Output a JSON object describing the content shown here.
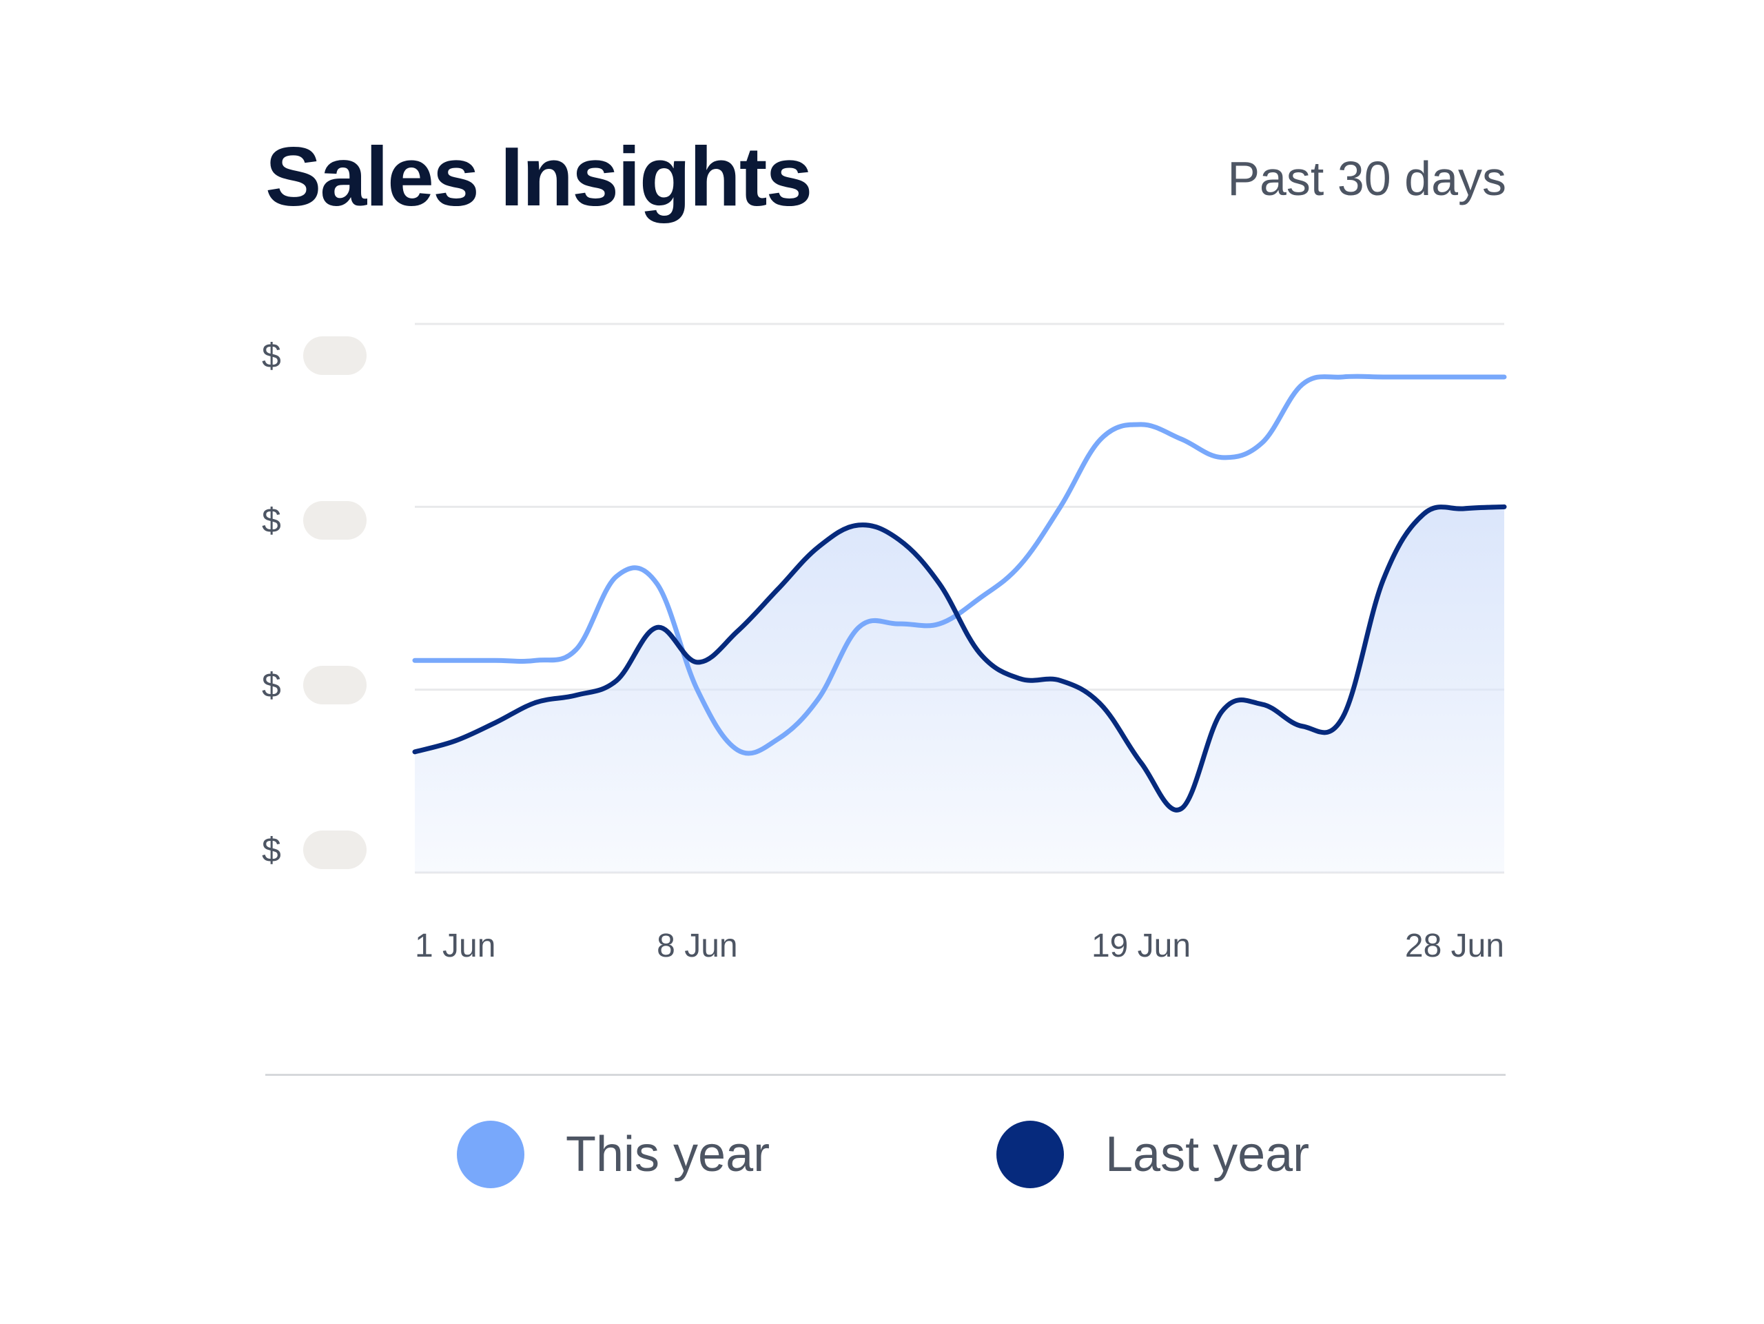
{
  "header": {
    "title": "Sales Insights",
    "period": "Past 30 days"
  },
  "y_axis": {
    "labels": [
      "$",
      "$",
      "$",
      "$"
    ]
  },
  "colors": {
    "this_year": "#78a8fb",
    "last_year": "#062a7d",
    "area_fill": "#dbe6fb",
    "grid": "#e8e9eb"
  },
  "chart_data": {
    "type": "line",
    "x_ticks": [
      "1 Jun",
      "8 Jun",
      "19 Jun",
      "28 Jun"
    ],
    "x_tick_positions": [
      1,
      8,
      19,
      28
    ],
    "xlim": [
      1,
      28
    ],
    "ylim": [
      0,
      3
    ],
    "grid": true,
    "legend_position": "bottom",
    "series": [
      {
        "name": "This year",
        "color": "#78a8fb",
        "area": false,
        "x": [
          1,
          2,
          3,
          4,
          5,
          6,
          7,
          8,
          9,
          10,
          11,
          12,
          13,
          14,
          15,
          16,
          17,
          18,
          19,
          20,
          21,
          22,
          23,
          24,
          25,
          26,
          27,
          28
        ],
        "values": [
          1.16,
          1.16,
          1.16,
          1.16,
          1.22,
          1.62,
          1.58,
          1.0,
          0.67,
          0.73,
          0.95,
          1.34,
          1.36,
          1.36,
          1.5,
          1.68,
          2.0,
          2.37,
          2.45,
          2.37,
          2.27,
          2.35,
          2.67,
          2.71,
          2.71,
          2.71,
          2.71,
          2.71
        ]
      },
      {
        "name": "Last year",
        "color": "#062a7d",
        "area": true,
        "x": [
          1,
          2,
          3,
          4,
          5,
          6,
          7,
          8,
          9,
          10,
          11,
          12,
          13,
          14,
          15,
          16,
          17,
          18,
          19,
          20,
          21,
          22,
          23,
          24,
          25,
          26,
          27,
          28
        ],
        "values": [
          0.66,
          0.72,
          0.82,
          0.93,
          0.97,
          1.05,
          1.34,
          1.15,
          1.32,
          1.55,
          1.78,
          1.9,
          1.82,
          1.58,
          1.2,
          1.06,
          1.05,
          0.92,
          0.6,
          0.35,
          0.88,
          0.92,
          0.8,
          0.85,
          1.6,
          1.96,
          1.99,
          2.0
        ]
      }
    ]
  },
  "legend": {
    "this_year_label": "This year",
    "last_year_label": "Last year"
  }
}
